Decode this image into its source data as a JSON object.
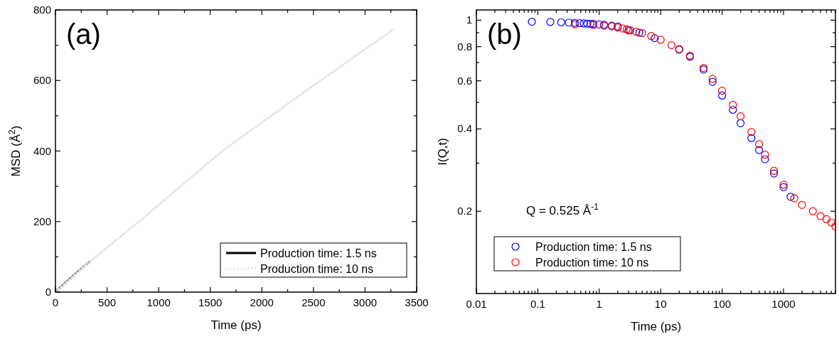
{
  "chart_data": [
    {
      "type": "line",
      "xlabel": "Time (ps)",
      "ylabel": "MSD (Å$^{2}$)",
      "annotations": [
        "(a)"
      ],
      "xlim": [
        0,
        3500
      ],
      "ylim": [
        0,
        800
      ],
      "xticks": [
        0,
        {
          "value": 250,
          "label": null
        },
        500,
        {
          "value": 750,
          "label": null
        },
        1000,
        {
          "value": 1250,
          "label": null
        },
        1500,
        {
          "value": 1750,
          "label": null
        },
        2000,
        {
          "value": 2250,
          "label": null
        },
        2500,
        {
          "value": 2750,
          "label": null
        },
        3000,
        {
          "value": 3250,
          "label": null
        },
        3500
      ],
      "yticks": [
        0,
        {
          "value": 100,
          "label": null
        },
        200,
        {
          "value": 300,
          "label": null
        },
        400,
        {
          "value": 500,
          "label": null
        },
        600,
        {
          "value": 700,
          "label": null
        },
        800
      ],
      "legend": "bottom right",
      "series": [
        {
          "name": "Production time: 1.5 ns",
          "color": "#000000",
          "line_style": "solid",
          "x": [
            0,
            50,
            100,
            150,
            200,
            250,
            330
          ],
          "values": [
            0,
            14,
            27,
            40,
            53,
            66,
            86
          ]
        },
        {
          "name": "Production time: 10 ns",
          "color": "#e6e6e6",
          "line_style": "dotted",
          "x": [
            0,
            330,
            811,
            1615,
            2400,
            3274
          ],
          "values": [
            0,
            86,
            200,
            400,
            565,
            745
          ]
        }
      ]
    },
    {
      "type": "scatter",
      "xlabel": "Time (ps)",
      "ylabel": "I(Q,t)",
      "annotations": [
        "(b)",
        "Q = 0.525 Å$^{-1}$"
      ],
      "log": "xy",
      "marker": "circle",
      "legend": "bottom left",
      "xlim": [
        0.01,
        7000
      ],
      "ylim": [
        0.1,
        1.09
      ],
      "xticks": [
        0.01,
        {
          "value": 0.02,
          "label": null
        },
        {
          "value": 0.03,
          "label": null
        },
        {
          "value": 0.04,
          "label": null
        },
        {
          "value": 0.05,
          "label": null
        },
        {
          "value": 0.06,
          "label": null
        },
        {
          "value": 0.07,
          "label": null
        },
        {
          "value": 0.08,
          "label": null
        },
        {
          "value": 0.09,
          "label": null
        },
        0.1,
        {
          "value": 0.2,
          "label": null
        },
        {
          "value": 0.3,
          "label": null
        },
        {
          "value": 0.4,
          "label": null
        },
        {
          "value": 0.5,
          "label": null
        },
        {
          "value": 0.6,
          "label": null
        },
        {
          "value": 0.7,
          "label": null
        },
        {
          "value": 0.8,
          "label": null
        },
        {
          "value": 0.9,
          "label": null
        },
        1,
        {
          "value": 2,
          "label": null
        },
        {
          "value": 3,
          "label": null
        },
        {
          "value": 4,
          "label": null
        },
        {
          "value": 5,
          "label": null
        },
        {
          "value": 6,
          "label": null
        },
        {
          "value": 7,
          "label": null
        },
        {
          "value": 8,
          "label": null
        },
        {
          "value": 9,
          "label": null
        },
        10,
        {
          "value": 20,
          "label": null
        },
        {
          "value": 30,
          "label": null
        },
        {
          "value": 40,
          "label": null
        },
        {
          "value": 50,
          "label": null
        },
        {
          "value": 60,
          "label": null
        },
        {
          "value": 70,
          "label": null
        },
        {
          "value": 80,
          "label": null
        },
        {
          "value": 90,
          "label": null
        },
        100,
        {
          "value": 200,
          "label": null
        },
        {
          "value": 300,
          "label": null
        },
        {
          "value": 400,
          "label": null
        },
        {
          "value": 500,
          "label": null
        },
        {
          "value": 600,
          "label": null
        },
        {
          "value": 700,
          "label": null
        },
        {
          "value": 800,
          "label": null
        },
        {
          "value": 900,
          "label": null
        },
        1000,
        {
          "value": 2000,
          "label": null
        },
        {
          "value": 3000,
          "label": null
        },
        {
          "value": 4000,
          "label": null
        },
        {
          "value": 5000,
          "label": null
        },
        {
          "value": 6000,
          "label": null
        },
        {
          "value": 7000,
          "label": null
        }
      ],
      "yticks": [
        0.2,
        {
          "value": 0.3,
          "label": null
        },
        0.4,
        {
          "value": 0.5,
          "label": null
        },
        0.6,
        {
          "value": 0.7,
          "label": null
        },
        0.8,
        {
          "value": 0.9,
          "label": null
        },
        1
      ],
      "series": [
        {
          "name": "Production time: 1.5 ns",
          "color": "#0000ff",
          "x": [
            0.08,
            0.16,
            0.24,
            0.32,
            0.4,
            0.48,
            0.56,
            0.64,
            0.72,
            0.8,
            1,
            1.2,
            1.6,
            2,
            3,
            4.5,
            8,
            20,
            30,
            50,
            70,
            100,
            150,
            200,
            300,
            400,
            500,
            700,
            1000,
            1300
          ],
          "values": [
            0.987,
            0.985,
            0.983,
            0.98,
            0.977,
            0.975,
            0.973,
            0.971,
            0.97,
            0.969,
            0.965,
            0.962,
            0.955,
            0.948,
            0.918,
            0.9,
            0.86,
            0.78,
            0.735,
            0.66,
            0.595,
            0.53,
            0.47,
            0.42,
            0.37,
            0.335,
            0.31,
            0.275,
            0.245,
            0.226
          ]
        },
        {
          "name": "Production time: 10 ns",
          "color": "#ff0000",
          "x": [
            0.4,
            0.8,
            1.2,
            1.6,
            2,
            2.4,
            2.8,
            3.2,
            4,
            5,
            7,
            10,
            15,
            20,
            30,
            50,
            70,
            100,
            150,
            200,
            300,
            400,
            500,
            700,
            1000,
            1500,
            2000,
            3000,
            4000,
            5000,
            6000,
            7000
          ],
          "values": [
            0.965,
            0.96,
            0.955,
            0.949,
            0.94,
            0.932,
            0.925,
            0.918,
            0.907,
            0.897,
            0.875,
            0.848,
            0.81,
            0.784,
            0.741,
            0.669,
            0.61,
            0.552,
            0.49,
            0.445,
            0.39,
            0.352,
            0.322,
            0.281,
            0.25,
            0.223,
            0.211,
            0.2,
            0.192,
            0.187,
            0.182,
            0.176
          ]
        }
      ]
    }
  ]
}
